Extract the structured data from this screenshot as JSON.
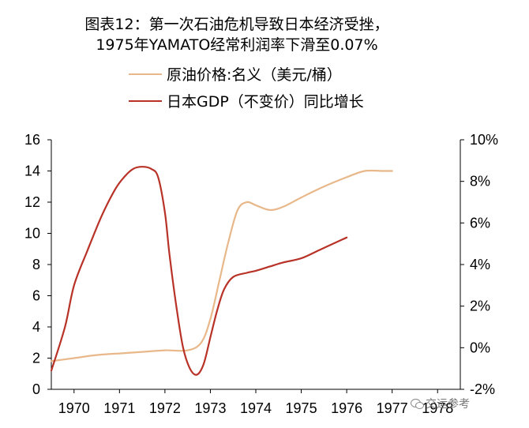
{
  "chart_data": {
    "type": "line",
    "title": "图表12：第一次石油危机导致日本经济受挫，",
    "subtitle": "1975年YAMATO经常利润率下滑至0.07%",
    "x_ticks": [
      "1970",
      "1971",
      "1972",
      "1973",
      "1974",
      "1975",
      "1976",
      "1977",
      "1978"
    ],
    "y_left": {
      "range": [
        0,
        16
      ],
      "ticks": [
        "0",
        "2",
        "4",
        "6",
        "8",
        "10",
        "12",
        "14",
        "16"
      ]
    },
    "y_right": {
      "range": [
        -2,
        10
      ],
      "ticks": [
        "-2%",
        "0%",
        "2%",
        "4%",
        "6%",
        "8%",
        "10%"
      ]
    },
    "grid": false,
    "legend_position": "top",
    "series": [
      {
        "name": "原油价格:名义（美元/桶）",
        "axis": "left",
        "color": "#E8B88A",
        "points": [
          [
            1969.5,
            1.8
          ],
          [
            1970,
            2.0
          ],
          [
            1970.5,
            2.2
          ],
          [
            1971,
            2.3
          ],
          [
            1971.5,
            2.4
          ],
          [
            1972,
            2.5
          ],
          [
            1972.5,
            2.5
          ],
          [
            1972.8,
            3.0
          ],
          [
            1973,
            4.5
          ],
          [
            1973.2,
            7.0
          ],
          [
            1973.4,
            9.5
          ],
          [
            1973.6,
            11.5
          ],
          [
            1973.8,
            12.0
          ],
          [
            1974,
            11.8
          ],
          [
            1974.3,
            11.5
          ],
          [
            1974.6,
            11.7
          ],
          [
            1975,
            12.3
          ],
          [
            1975.5,
            13.0
          ],
          [
            1976,
            13.6
          ],
          [
            1976.4,
            14.0
          ],
          [
            1976.8,
            14.0
          ],
          [
            1977,
            14.0
          ]
        ]
      },
      {
        "name": "日本GDP（不变价）同比增长",
        "axis": "right",
        "color": "#B83227",
        "points": [
          [
            1969.5,
            -1.1
          ],
          [
            1969.8,
            1.0
          ],
          [
            1970,
            3.0
          ],
          [
            1970.3,
            4.7
          ],
          [
            1970.6,
            6.3
          ],
          [
            1970.9,
            7.6
          ],
          [
            1971.1,
            8.2
          ],
          [
            1971.3,
            8.6
          ],
          [
            1971.5,
            8.7
          ],
          [
            1971.7,
            8.6
          ],
          [
            1971.85,
            8.2
          ],
          [
            1972,
            6.5
          ],
          [
            1972.1,
            4.5
          ],
          [
            1972.25,
            2.0
          ],
          [
            1972.4,
            0.0
          ],
          [
            1972.55,
            -1.0
          ],
          [
            1972.7,
            -1.3
          ],
          [
            1972.85,
            -0.8
          ],
          [
            1973,
            0.5
          ],
          [
            1973.15,
            1.8
          ],
          [
            1973.3,
            2.8
          ],
          [
            1973.5,
            3.4
          ],
          [
            1973.8,
            3.6
          ],
          [
            1974,
            3.7
          ],
          [
            1974.3,
            3.9
          ],
          [
            1974.6,
            4.1
          ],
          [
            1975,
            4.3
          ],
          [
            1975.4,
            4.7
          ],
          [
            1975.8,
            5.1
          ],
          [
            1976,
            5.3
          ]
        ]
      }
    ]
  },
  "watermark": "交运参考"
}
